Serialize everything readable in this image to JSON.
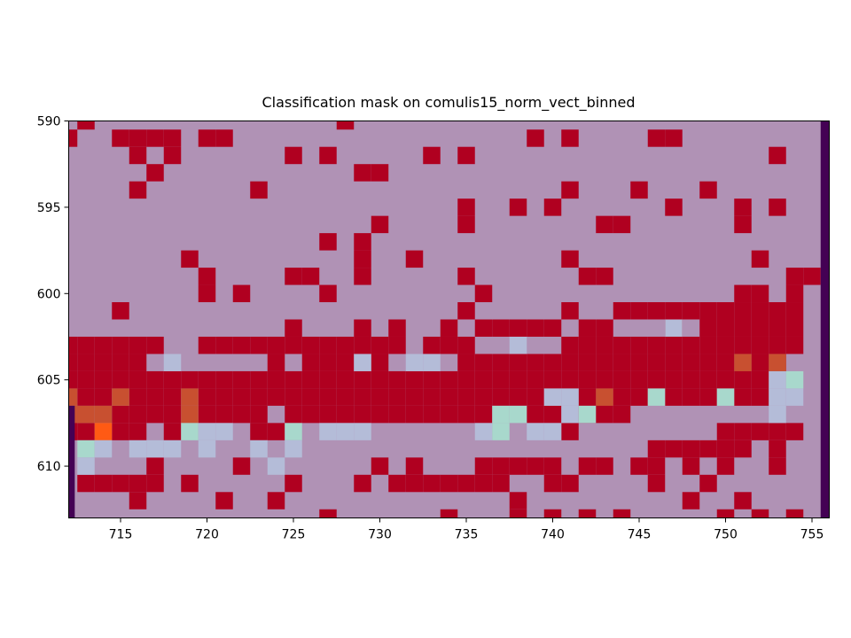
{
  "chart_data": {
    "type": "heatmap",
    "title": "Classification mask on comulis15_norm_vect_binned",
    "xlabel": "",
    "ylabel": "",
    "x_range": [
      712,
      756
    ],
    "y_range": [
      590,
      613
    ],
    "y_inverted": true,
    "x_ticks": [
      715,
      720,
      725,
      730,
      735,
      740,
      745,
      750,
      755
    ],
    "y_ticks": [
      590,
      595,
      600,
      605,
      610
    ],
    "grid": false,
    "legend": "none",
    "colors": {
      "background": "#b092b5",
      "mask": "#b00020",
      "edge": "#440154",
      "orange": "#c85030",
      "bright_orange": "#ff5a14",
      "teal": "#a8d8cc",
      "pale_blue": "#b4bcd8"
    },
    "edge_columns": [
      [
        612,
        [
          607,
          613
        ]
      ],
      [
        755,
        [
          590,
          613
        ]
      ]
    ],
    "mask_rows": [
      {
        "y": 590,
        "x": [
          713,
          728
        ]
      },
      {
        "y": 591,
        "x": [
          712,
          715,
          716,
          717,
          718,
          720,
          721,
          739,
          741,
          746,
          747
        ]
      },
      {
        "y": 592,
        "x": [
          716,
          718,
          725,
          727,
          733,
          735,
          753
        ]
      },
      {
        "y": 593,
        "x": [
          717,
          729,
          730
        ]
      },
      {
        "y": 594,
        "x": [
          716,
          723,
          741,
          745,
          749
        ]
      },
      {
        "y": 595,
        "x": [
          735,
          738,
          740,
          747,
          751,
          753
        ]
      },
      {
        "y": 596,
        "x": [
          730,
          735,
          743,
          744,
          751
        ]
      },
      {
        "y": 597,
        "x": [
          727,
          729
        ]
      },
      {
        "y": 598,
        "x": [
          719,
          729,
          732,
          741,
          752
        ]
      },
      {
        "y": 599,
        "x": [
          720,
          725,
          726,
          729,
          735,
          742,
          743,
          754,
          755
        ]
      },
      {
        "y": 600,
        "x": [
          720,
          722,
          727,
          736,
          751,
          752,
          754
        ]
      },
      {
        "y": 601,
        "x": [
          715,
          735,
          741,
          744,
          745,
          746,
          747,
          748,
          749,
          750,
          751,
          752,
          753,
          754
        ]
      },
      {
        "y": 602,
        "x": [
          725,
          729,
          731,
          734,
          736,
          737,
          738,
          739,
          740,
          742,
          743,
          747,
          749,
          750,
          751,
          752,
          753,
          754
        ]
      },
      {
        "y": 603,
        "x": [
          712,
          713,
          714,
          715,
          716,
          717,
          720,
          721,
          722,
          723,
          724,
          725,
          726,
          727,
          728,
          729,
          730,
          731,
          733,
          734,
          735,
          741,
          742,
          743,
          744,
          745,
          746,
          747,
          748,
          749,
          750,
          751,
          752,
          753,
          754
        ]
      },
      {
        "y": 604,
        "x": [
          712,
          713,
          714,
          715,
          716,
          724,
          726,
          727,
          728,
          730,
          735,
          736,
          737,
          738,
          739,
          740,
          741,
          742,
          743,
          744,
          745,
          746,
          747,
          748,
          749,
          750,
          751,
          752,
          753
        ]
      },
      {
        "y": 605,
        "x": [
          712,
          713,
          714,
          715,
          716,
          717,
          718,
          719,
          720,
          721,
          722,
          723,
          724,
          725,
          726,
          727,
          728,
          729,
          730,
          731,
          732,
          733,
          734,
          735,
          736,
          737,
          738,
          739,
          740,
          741,
          742,
          743,
          744,
          745,
          746,
          747,
          748,
          749,
          750,
          751,
          752
        ]
      },
      {
        "y": 606,
        "x": [
          713,
          714,
          716,
          717,
          718,
          720,
          721,
          722,
          723,
          724,
          725,
          726,
          727,
          728,
          729,
          730,
          731,
          732,
          733,
          734,
          735,
          736,
          737,
          738,
          739,
          742,
          743,
          744,
          745,
          747,
          748,
          749,
          751,
          752
        ]
      },
      {
        "y": 607,
        "x": [
          712,
          715,
          716,
          717,
          718,
          720,
          721,
          722,
          723,
          725,
          726,
          727,
          728,
          729,
          730,
          731,
          732,
          733,
          734,
          735,
          736,
          739,
          740,
          742,
          743,
          744
        ]
      },
      {
        "y": 608,
        "x": [
          712,
          713,
          715,
          716,
          718,
          723,
          724,
          741,
          750,
          751,
          752,
          753,
          754
        ]
      },
      {
        "y": 609,
        "x": [
          746,
          747,
          748,
          749,
          750,
          751,
          753
        ]
      },
      {
        "y": 610,
        "x": [
          717,
          722,
          730,
          732,
          736,
          737,
          738,
          739,
          740,
          742,
          743,
          745,
          746,
          748,
          750,
          753
        ]
      },
      {
        "y": 611,
        "x": [
          713,
          714,
          715,
          716,
          717,
          719,
          725,
          729,
          731,
          732,
          733,
          734,
          735,
          736,
          737,
          740,
          741,
          746,
          749
        ]
      },
      {
        "y": 612,
        "x": [
          716,
          721,
          724,
          738,
          748,
          751
        ]
      },
      {
        "y": 613,
        "x": [
          727,
          734,
          738,
          740,
          742,
          744,
          750,
          752,
          754
        ]
      }
    ],
    "tinted_cells": [
      {
        "y": 602,
        "x": 747,
        "c": "pale_blue"
      },
      {
        "y": 603,
        "x": 738,
        "c": "pale_blue"
      },
      {
        "y": 604,
        "x": 718,
        "c": "pale_blue"
      },
      {
        "y": 604,
        "x": 729,
        "c": "pale_blue"
      },
      {
        "y": 604,
        "x": 732,
        "c": "pale_blue"
      },
      {
        "y": 604,
        "x": 733,
        "c": "pale_blue"
      },
      {
        "y": 604,
        "x": 751,
        "c": "orange"
      },
      {
        "y": 604,
        "x": 753,
        "c": "orange"
      },
      {
        "y": 605,
        "x": 753,
        "c": "pale_blue"
      },
      {
        "y": 605,
        "x": 754,
        "c": "teal"
      },
      {
        "y": 606,
        "x": 712,
        "c": "orange"
      },
      {
        "y": 606,
        "x": 715,
        "c": "orange"
      },
      {
        "y": 606,
        "x": 719,
        "c": "orange"
      },
      {
        "y": 606,
        "x": 740,
        "c": "pale_blue"
      },
      {
        "y": 606,
        "x": 741,
        "c": "pale_blue"
      },
      {
        "y": 606,
        "x": 743,
        "c": "orange"
      },
      {
        "y": 606,
        "x": 746,
        "c": "teal"
      },
      {
        "y": 606,
        "x": 750,
        "c": "teal"
      },
      {
        "y": 606,
        "x": 753,
        "c": "pale_blue"
      },
      {
        "y": 606,
        "x": 754,
        "c": "pale_blue"
      },
      {
        "y": 607,
        "x": 712,
        "c": "orange"
      },
      {
        "y": 607,
        "x": 713,
        "c": "orange"
      },
      {
        "y": 607,
        "x": 714,
        "c": "orange"
      },
      {
        "y": 607,
        "x": 719,
        "c": "orange"
      },
      {
        "y": 607,
        "x": 737,
        "c": "teal"
      },
      {
        "y": 607,
        "x": 738,
        "c": "teal"
      },
      {
        "y": 607,
        "x": 741,
        "c": "pale_blue"
      },
      {
        "y": 607,
        "x": 742,
        "c": "teal"
      },
      {
        "y": 607,
        "x": 753,
        "c": "pale_blue"
      },
      {
        "y": 608,
        "x": 714,
        "c": "bright_orange"
      },
      {
        "y": 608,
        "x": 719,
        "c": "teal"
      },
      {
        "y": 608,
        "x": 720,
        "c": "pale_blue"
      },
      {
        "y": 608,
        "x": 721,
        "c": "pale_blue"
      },
      {
        "y": 608,
        "x": 725,
        "c": "teal"
      },
      {
        "y": 608,
        "x": 727,
        "c": "pale_blue"
      },
      {
        "y": 608,
        "x": 728,
        "c": "pale_blue"
      },
      {
        "y": 608,
        "x": 729,
        "c": "pale_blue"
      },
      {
        "y": 608,
        "x": 736,
        "c": "pale_blue"
      },
      {
        "y": 608,
        "x": 737,
        "c": "teal"
      },
      {
        "y": 608,
        "x": 739,
        "c": "pale_blue"
      },
      {
        "y": 608,
        "x": 740,
        "c": "pale_blue"
      },
      {
        "y": 609,
        "x": 713,
        "c": "teal"
      },
      {
        "y": 609,
        "x": 714,
        "c": "pale_blue"
      },
      {
        "y": 609,
        "x": 716,
        "c": "pale_blue"
      },
      {
        "y": 609,
        "x": 717,
        "c": "pale_blue"
      },
      {
        "y": 609,
        "x": 718,
        "c": "pale_blue"
      },
      {
        "y": 609,
        "x": 720,
        "c": "pale_blue"
      },
      {
        "y": 609,
        "x": 723,
        "c": "pale_blue"
      },
      {
        "y": 609,
        "x": 725,
        "c": "pale_blue"
      },
      {
        "y": 610,
        "x": 713,
        "c": "pale_blue"
      },
      {
        "y": 610,
        "x": 724,
        "c": "pale_blue"
      }
    ]
  }
}
